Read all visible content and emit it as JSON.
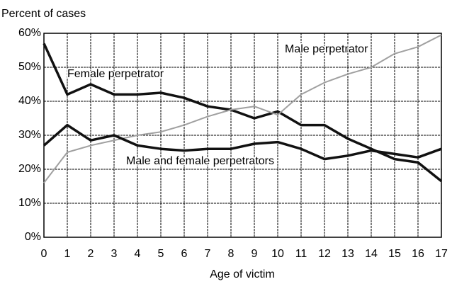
{
  "chart_data": {
    "type": "line",
    "y_label": "Percent of cases",
    "x_label": "Age of victim",
    "x": [
      0,
      1,
      2,
      3,
      4,
      5,
      6,
      7,
      8,
      9,
      10,
      11,
      12,
      13,
      14,
      15,
      16,
      17
    ],
    "xlim": [
      0,
      17
    ],
    "xticks": [
      0,
      1,
      2,
      3,
      4,
      5,
      6,
      7,
      8,
      9,
      10,
      11,
      12,
      13,
      14,
      15,
      16,
      17
    ],
    "ylim": [
      0,
      60
    ],
    "yticks": [
      {
        "value": 0,
        "label": "0%"
      },
      {
        "value": 10,
        "label": "10%"
      },
      {
        "value": 20,
        "label": "20%"
      },
      {
        "value": 30,
        "label": "30%"
      },
      {
        "value": 40,
        "label": "40%"
      },
      {
        "value": 50,
        "label": "50%"
      },
      {
        "value": 60,
        "label": "60%"
      }
    ],
    "grid": true,
    "series": [
      {
        "name": "Female perpetrator",
        "color": "#111111",
        "values": [
          57,
          42,
          45,
          42,
          42,
          42.5,
          41,
          38.5,
          37.5,
          35,
          37,
          33,
          33,
          29,
          26,
          23,
          22,
          16.5
        ]
      },
      {
        "name": "Male perpetrator",
        "color": "#a0a0a0",
        "values": [
          16,
          25,
          27,
          28.5,
          30,
          31,
          33,
          35.5,
          37.5,
          38.5,
          36,
          42,
          45.5,
          48,
          50,
          54,
          56,
          59.5
        ]
      },
      {
        "name": "Male and female perpetrators",
        "color": "#111111",
        "values": [
          27,
          33,
          28.5,
          30,
          27,
          26,
          25.5,
          26,
          26,
          27.5,
          28,
          26,
          23,
          24,
          25.5,
          24.5,
          23.5,
          26
        ]
      }
    ]
  }
}
